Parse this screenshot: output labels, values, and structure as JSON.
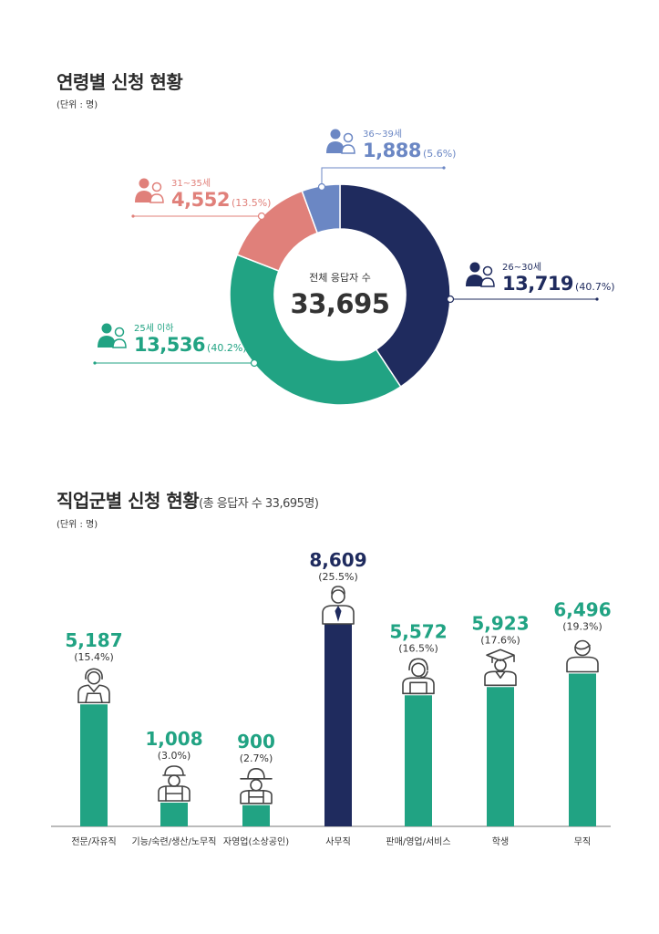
{
  "section1": {
    "title": "연령별 신청 현황",
    "unit": "(단위 : 명)"
  },
  "section2": {
    "title": "직업군별 신청 현황",
    "subtitle": "(총 응답자 수 33,695명)",
    "unit": "(단위 : 명)"
  },
  "chart_data": [
    {
      "type": "pie",
      "style": "donut",
      "center_label": "전체 응답자 수",
      "center_value": "33,695",
      "slices": [
        {
          "label": "26~30세",
          "value": 13719,
          "value_text": "13,719",
          "pct_text": "(40.7%)",
          "color": "#1f2b5e"
        },
        {
          "label": "25세 이하",
          "value": 13536,
          "value_text": "13,536",
          "pct_text": "(40.2%)",
          "color": "#21a383"
        },
        {
          "label": "31~35세",
          "value": 4552,
          "value_text": "4,552",
          "pct_text": "(13.5%)",
          "color": "#e0807a"
        },
        {
          "label": "36~39세",
          "value": 1888,
          "value_text": "1,888",
          "pct_text": "(5.6%)",
          "color": "#6b87c4"
        }
      ]
    },
    {
      "type": "bar",
      "categories": [
        "전문/자유직",
        "기능/숙련/생산/노무직",
        "자영업(소상공인)",
        "사무직",
        "판매/영업/서비스",
        "학생",
        "무직"
      ],
      "values": [
        5187,
        1008,
        900,
        8609,
        5572,
        5923,
        6496
      ],
      "value_text": [
        "5,187",
        "1,008",
        "900",
        "8,609",
        "5,572",
        "5,923",
        "6,496"
      ],
      "pct_text": [
        "(15.4%)",
        "(3.0%)",
        "(2.7%)",
        "(25.5%)",
        "(16.5%)",
        "(17.6%)",
        "(19.3%)"
      ],
      "icons": [
        "professional-icon",
        "worker-hardhat-icon",
        "farmer-hat-icon",
        "office-worker-icon",
        "headset-sales-icon",
        "graduate-cap-icon",
        "person-icon"
      ],
      "colors": [
        "#21a383",
        "#21a383",
        "#21a383",
        "#1f2b5e",
        "#21a383",
        "#21a383",
        "#21a383"
      ],
      "ylim": [
        0,
        8609
      ]
    }
  ]
}
